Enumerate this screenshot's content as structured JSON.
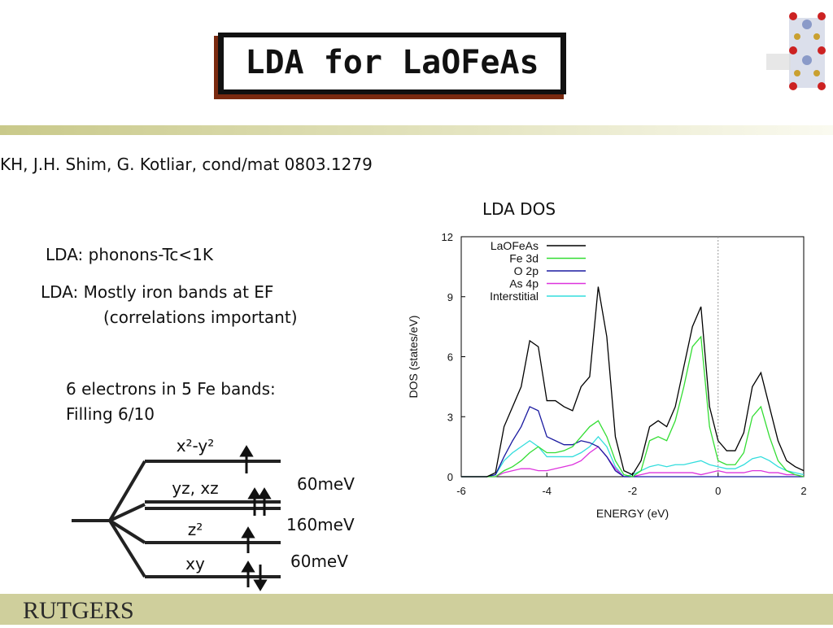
{
  "header": {
    "title": "LDA for LaOFeAs",
    "citation": "KH, J.H. Shim, G. Kotliar, cond/mat 0803.1279"
  },
  "bullets": [
    "LDA: phonons-Tc<1K",
    "LDA: Mostly iron bands at EF",
    "(correlations important)",
    "6 electrons in 5 Fe bands:",
    "Filling 6/10"
  ],
  "levels": [
    {
      "label": "x²-y²"
    },
    {
      "label": "yz, xz"
    },
    {
      "label": "z²"
    },
    {
      "label": "xy"
    }
  ],
  "splittings": [
    "60meV",
    "160meV",
    "60meV"
  ],
  "footer": {
    "logo": "RUTGERS"
  },
  "chart_data": {
    "type": "line",
    "title": "LDA DOS",
    "x_label": "ENERGY (eV)",
    "y_label": "DOS (states/eV)",
    "x": [
      -6,
      -5.8,
      -5.6,
      -5.4,
      -5.2,
      -5,
      -4.8,
      -4.6,
      -4.4,
      -4.2,
      -4,
      -3.8,
      -3.6,
      -3.4,
      -3.2,
      -3,
      -2.8,
      -2.6,
      -2.4,
      -2.2,
      -2,
      -1.8,
      -1.6,
      -1.4,
      -1.2,
      -1,
      -0.8,
      -0.6,
      -0.4,
      -0.2,
      0,
      0.2,
      0.4,
      0.6,
      0.8,
      1,
      1.2,
      1.4,
      1.6,
      1.8,
      2
    ],
    "series": [
      {
        "name": "LaOFeAs",
        "color": "#000000",
        "values": [
          0,
          0,
          0,
          0,
          0.2,
          2.5,
          3.5,
          4.5,
          6.8,
          6.5,
          3.8,
          3.8,
          3.5,
          3.3,
          4.5,
          5.0,
          9.5,
          7.0,
          2.0,
          0.3,
          0.1,
          0.8,
          2.5,
          2.8,
          2.5,
          3.5,
          5.5,
          7.5,
          8.5,
          3.5,
          1.8,
          1.3,
          1.3,
          2.2,
          4.5,
          5.2,
          3.5,
          1.8,
          0.8,
          0.5,
          0.3
        ]
      },
      {
        "name": "Fe 3d",
        "color": "#33dd33",
        "values": [
          0,
          0,
          0,
          0,
          0,
          0.3,
          0.5,
          0.8,
          1.2,
          1.5,
          1.2,
          1.2,
          1.3,
          1.5,
          2.0,
          2.5,
          2.8,
          2.0,
          0.8,
          0.1,
          0,
          0.3,
          1.8,
          2.0,
          1.8,
          2.8,
          4.5,
          6.5,
          7.0,
          2.5,
          0.8,
          0.6,
          0.6,
          1.2,
          3.0,
          3.5,
          2.0,
          0.8,
          0.3,
          0.1,
          0
        ]
      },
      {
        "name": "O 2p",
        "color": "#1a1aa0",
        "values": [
          0,
          0,
          0,
          0,
          0.1,
          1.0,
          1.8,
          2.5,
          3.5,
          3.3,
          2.0,
          1.8,
          1.6,
          1.6,
          1.8,
          1.7,
          1.5,
          1.0,
          0.3,
          0,
          0,
          0,
          0,
          0,
          0,
          0,
          0,
          0,
          0,
          0,
          0,
          0,
          0,
          0,
          0,
          0,
          0,
          0,
          0,
          0,
          0
        ]
      },
      {
        "name": "As 4p",
        "color": "#dd33dd",
        "values": [
          0,
          0,
          0,
          0,
          0,
          0.2,
          0.3,
          0.4,
          0.4,
          0.3,
          0.3,
          0.4,
          0.5,
          0.6,
          0.8,
          1.2,
          1.5,
          1.0,
          0.4,
          0,
          0,
          0.1,
          0.2,
          0.2,
          0.2,
          0.2,
          0.2,
          0.2,
          0.1,
          0.2,
          0.3,
          0.2,
          0.2,
          0.2,
          0.3,
          0.3,
          0.2,
          0.2,
          0.1,
          0.1,
          0
        ]
      },
      {
        "name": "Interstitial",
        "color": "#33dddd",
        "values": [
          0,
          0,
          0,
          0,
          0.1,
          0.8,
          1.2,
          1.5,
          1.8,
          1.5,
          1.0,
          1.0,
          1.0,
          1.0,
          1.2,
          1.5,
          2.0,
          1.5,
          0.5,
          0,
          0.1,
          0.3,
          0.5,
          0.6,
          0.5,
          0.6,
          0.6,
          0.7,
          0.8,
          0.6,
          0.5,
          0.4,
          0.4,
          0.6,
          0.9,
          1.0,
          0.8,
          0.5,
          0.3,
          0.2,
          0.1
        ]
      }
    ],
    "xlim": [
      -6,
      2
    ],
    "xticks": [
      -6,
      -4,
      -2,
      0,
      2
    ],
    "ylim": [
      0,
      12
    ],
    "yticks": [
      0,
      3,
      6,
      9,
      12
    ],
    "legend": "top-left"
  }
}
